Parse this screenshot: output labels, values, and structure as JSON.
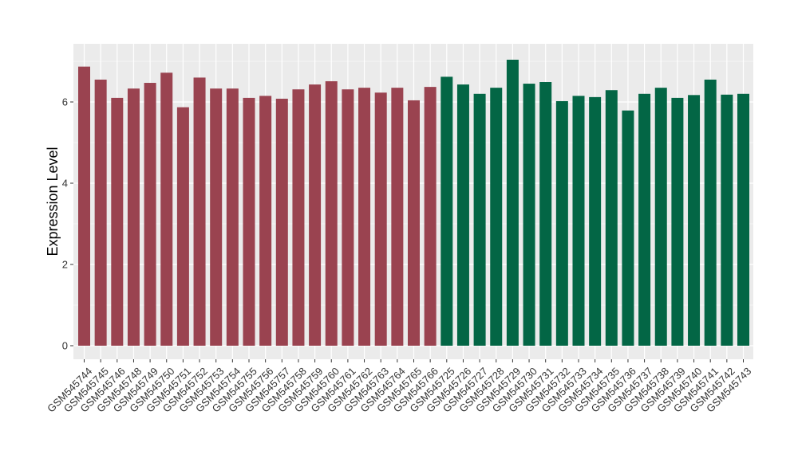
{
  "chart_data": {
    "type": "bar",
    "title": "",
    "xlabel": "",
    "ylabel": "Expression Level",
    "ylim": [
      0,
      7.2
    ],
    "yticks": [
      0,
      2,
      4,
      6
    ],
    "grid": true,
    "legend": "none",
    "categories": [
      "GSM545744",
      "GSM545745",
      "GSM545746",
      "GSM545748",
      "GSM545749",
      "GSM545750",
      "GSM545751",
      "GSM545752",
      "GSM545753",
      "GSM545754",
      "GSM545755",
      "GSM545756",
      "GSM545757",
      "GSM545758",
      "GSM545759",
      "GSM545760",
      "GSM545761",
      "GSM545762",
      "GSM545763",
      "GSM545764",
      "GSM545765",
      "GSM545766",
      "GSM545725",
      "GSM545726",
      "GSM545727",
      "GSM545728",
      "GSM545729",
      "GSM545730",
      "GSM545731",
      "GSM545732",
      "GSM545733",
      "GSM545734",
      "GSM545735",
      "GSM545736",
      "GSM545737",
      "GSM545738",
      "GSM545739",
      "GSM545740",
      "GSM545741",
      "GSM545742",
      "GSM545743"
    ],
    "values": [
      6.87,
      6.55,
      6.1,
      6.33,
      6.47,
      6.72,
      5.87,
      6.6,
      6.33,
      6.33,
      6.1,
      6.15,
      6.08,
      6.31,
      6.43,
      6.51,
      6.31,
      6.35,
      6.23,
      6.35,
      6.04,
      6.37,
      6.62,
      6.43,
      6.2,
      6.35,
      7.04,
      6.45,
      6.49,
      6.02,
      6.15,
      6.12,
      6.29,
      5.79,
      6.2,
      6.35,
      6.1,
      6.17,
      6.55,
      6.18,
      6.2
    ],
    "group_sizes": [
      22,
      19
    ],
    "colors": [
      "#9a4350",
      "#036645"
    ],
    "panel_background": "#ebebeb",
    "gridline_color": "#ffffff"
  }
}
